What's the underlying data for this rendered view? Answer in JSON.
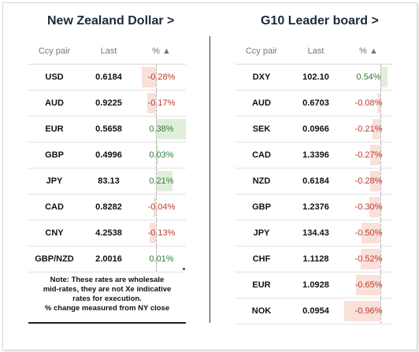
{
  "left_panel": {
    "title": "New Zealand Dollar >",
    "headers": {
      "pair": "Ccy pair",
      "last": "Last",
      "pct": "% ▲"
    },
    "rows": [
      {
        "pair": "USD",
        "last": "0.6184",
        "pct": "-0.28%",
        "value": -0.28
      },
      {
        "pair": "AUD",
        "last": "0.9225",
        "pct": "-0.17%",
        "value": -0.17
      },
      {
        "pair": "EUR",
        "last": "0.5658",
        "pct": "0.38%",
        "value": 0.38
      },
      {
        "pair": "GBP",
        "last": "0.4996",
        "pct": "0.03%",
        "value": 0.03
      },
      {
        "pair": "JPY",
        "last": "83.13",
        "pct": "0.21%",
        "value": 0.21
      },
      {
        "pair": "CAD",
        "last": "0.8282",
        "pct": "-0.04%",
        "value": -0.04
      },
      {
        "pair": "CNY",
        "last": "4.2538",
        "pct": "-0.13%",
        "value": -0.13
      },
      {
        "pair": "GBP/NZD",
        "last": "2.0016",
        "pct": "0.01%",
        "value": 0.01
      }
    ],
    "note": [
      "Note: These rates are wholesale",
      "mid-rates, they are not Xe indicative",
      "rates for execution.",
      "% change measured from NY close"
    ]
  },
  "right_panel": {
    "title": "G10 Leader board >",
    "headers": {
      "pair": "Ccy pair",
      "last": "Last",
      "pct": "% ▲"
    },
    "rows": [
      {
        "pair": "DXY",
        "last": "102.10",
        "pct": "0.54%",
        "value": 0.54
      },
      {
        "pair": "AUD",
        "last": "0.6703",
        "pct": "-0.08%",
        "value": -0.08
      },
      {
        "pair": "SEK",
        "last": "0.0966",
        "pct": "-0.21%",
        "value": -0.21
      },
      {
        "pair": "CAD",
        "last": "1.3396",
        "pct": "-0.27%",
        "value": -0.27
      },
      {
        "pair": "NZD",
        "last": "0.6184",
        "pct": "-0.28%",
        "value": -0.28
      },
      {
        "pair": "GBP",
        "last": "1.2376",
        "pct": "-0.30%",
        "value": -0.3
      },
      {
        "pair": "JPY",
        "last": "134.43",
        "pct": "-0.50%",
        "value": -0.5
      },
      {
        "pair": "CHF",
        "last": "1.1128",
        "pct": "-0.52%",
        "value": -0.52
      },
      {
        "pair": "EUR",
        "last": "1.0928",
        "pct": "-0.65%",
        "value": -0.65
      },
      {
        "pair": "NOK",
        "last": "0.0954",
        "pct": "-0.96%",
        "value": -0.96
      }
    ]
  },
  "colors": {
    "negative": "#c0392b",
    "positive": "#2f7d32",
    "neg_bar": "#f9e0d9",
    "pos_bar": "#e1eedb"
  }
}
